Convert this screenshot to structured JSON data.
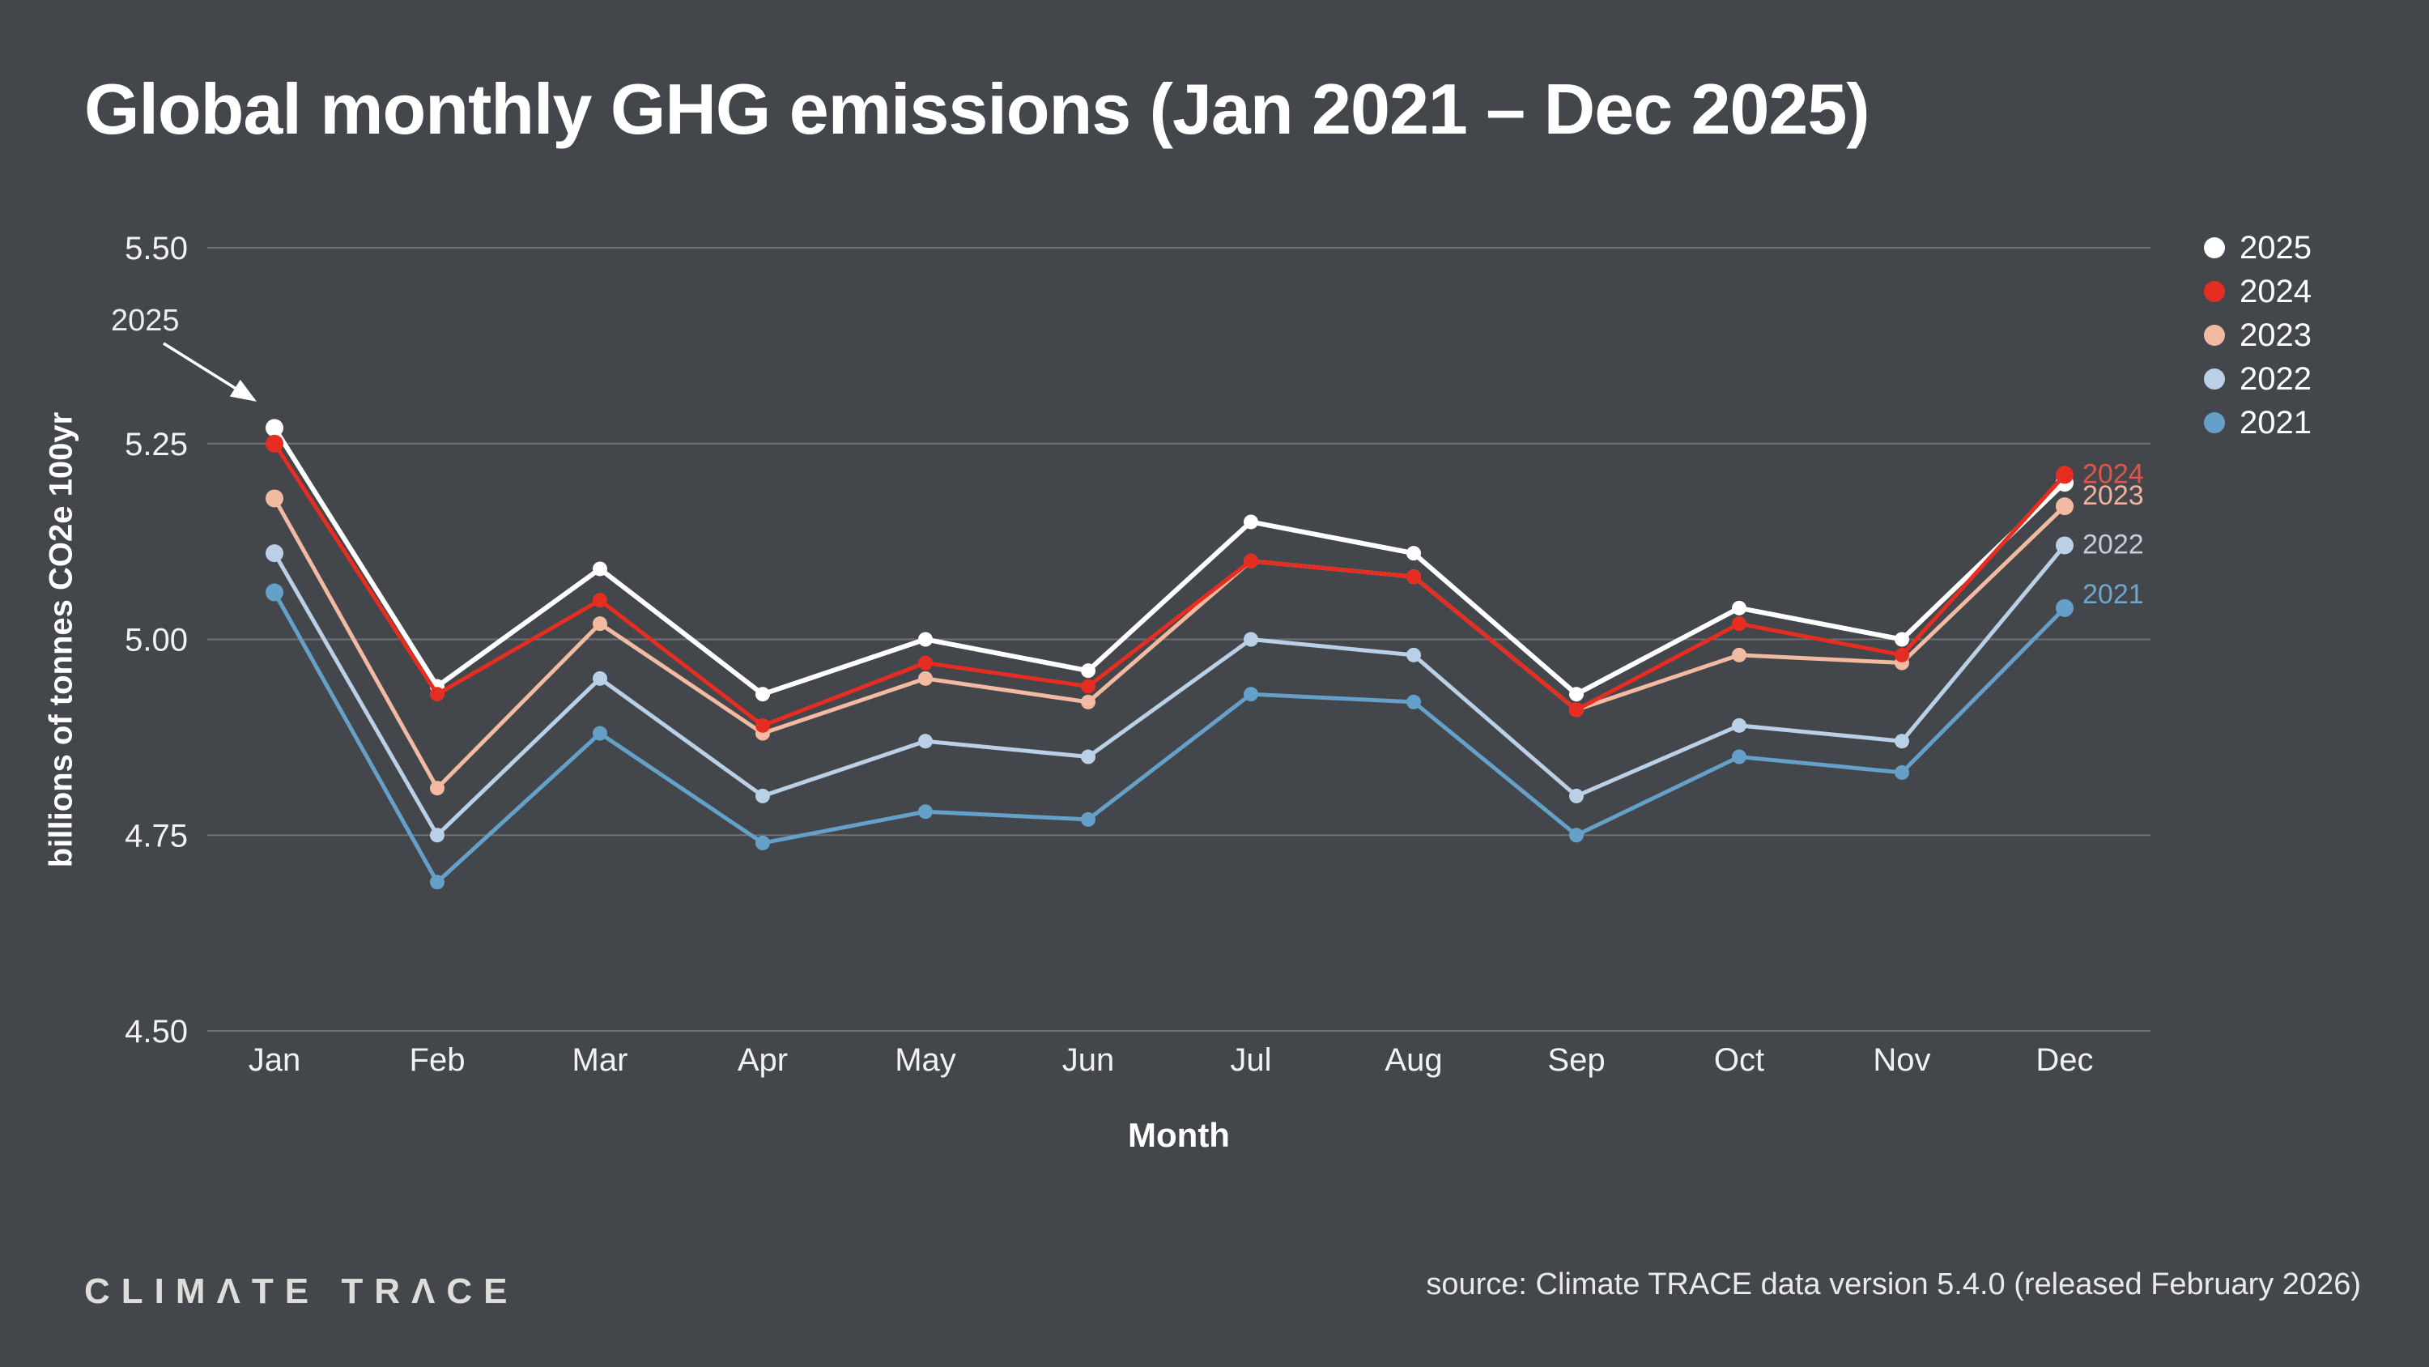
{
  "header": {
    "title": "Global monthly GHG emissions (Jan 2021 – Dec 2025)"
  },
  "chart_data": {
    "type": "line",
    "title": "Global monthly GHG emissions (Jan 2021 – Dec 2025)",
    "xlabel": "Month",
    "ylabel": "billions of tonnes CO2e 100yr",
    "ylim": [
      4.5,
      5.5
    ],
    "yticks": [
      "5.50",
      "5.25",
      "5.00",
      "4.75",
      "4.50"
    ],
    "grid": "horizontal",
    "legend_position": "top-right",
    "categories": [
      "Jan",
      "Feb",
      "Mar",
      "Apr",
      "May",
      "Jun",
      "Jul",
      "Aug",
      "Sep",
      "Oct",
      "Nov",
      "Dec"
    ],
    "series": [
      {
        "name": "2021",
        "color": "#64a0c8",
        "values": [
          5.06,
          4.69,
          4.88,
          4.74,
          4.78,
          4.77,
          4.93,
          4.92,
          4.75,
          4.85,
          4.83,
          5.04
        ]
      },
      {
        "name": "2022",
        "color": "#bad0e6",
        "values": [
          5.11,
          4.75,
          4.95,
          4.8,
          4.87,
          4.85,
          5.0,
          4.98,
          4.8,
          4.89,
          4.87,
          5.12
        ]
      },
      {
        "name": "2023",
        "color": "#f3baa2",
        "values": [
          5.18,
          4.81,
          5.02,
          4.88,
          4.95,
          4.92,
          5.1,
          5.08,
          4.91,
          4.98,
          4.97,
          5.17
        ]
      },
      {
        "name": "2024",
        "color": "#e62d22",
        "values": [
          5.25,
          4.93,
          5.05,
          4.89,
          4.97,
          4.94,
          5.1,
          5.08,
          4.91,
          5.02,
          4.98,
          5.21
        ]
      },
      {
        "name": "2025",
        "color": "#ffffff",
        "values": [
          5.27,
          4.94,
          5.09,
          4.93,
          5.0,
          4.96,
          5.15,
          5.11,
          4.93,
          5.04,
          5.0,
          5.2
        ]
      }
    ]
  },
  "legend": {
    "items": [
      {
        "label": "2025",
        "color": "#ffffff"
      },
      {
        "label": "2024",
        "color": "#e62d22"
      },
      {
        "label": "2023",
        "color": "#f3baa2"
      },
      {
        "label": "2022",
        "color": "#bad0e6"
      },
      {
        "label": "2021",
        "color": "#64a0c8"
      }
    ]
  },
  "right_labels": [
    {
      "label": "2024",
      "color": "#e05449"
    },
    {
      "label": "2023",
      "color": "#f0b29a"
    },
    {
      "label": "2022",
      "color": "#c2cedb"
    },
    {
      "label": "2021",
      "color": "#6ea6cd"
    }
  ],
  "annotation": {
    "label": "2025"
  },
  "axis": {
    "x_title": "Month",
    "y_title": "billions of tonnes CO2e 100yr"
  },
  "footer": {
    "brand": "CLIMΛTE TRΛCE",
    "source": "source: Climate TRACE data version 5.4.0 (released February 2026)"
  }
}
